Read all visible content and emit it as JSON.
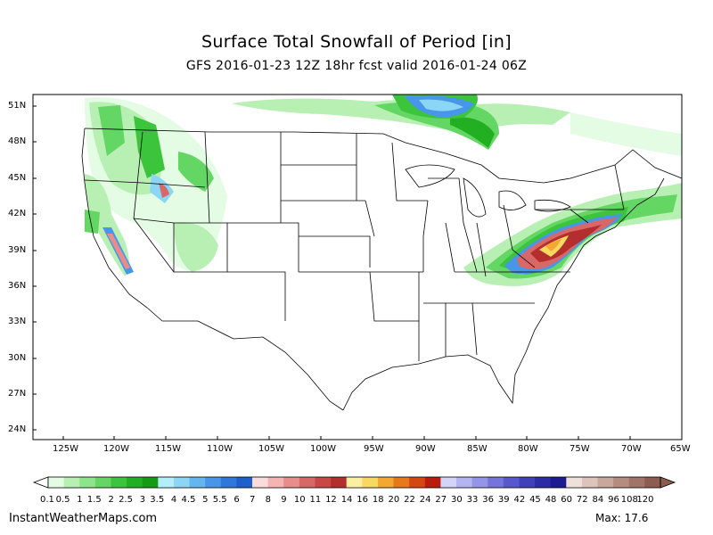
{
  "title": "Surface Total Snowfall of Period [in]",
  "subtitle": "GFS 2016-01-23 12Z 18hr fcst valid 2016-01-24 06Z",
  "lat_labels": [
    "51N",
    "48N",
    "45N",
    "42N",
    "39N",
    "36N",
    "33N",
    "30N",
    "27N",
    "24N"
  ],
  "lon_labels": [
    "125W",
    "120W",
    "115W",
    "110W",
    "105W",
    "100W",
    "95W",
    "90W",
    "85W",
    "80W",
    "75W",
    "70W",
    "65W"
  ],
  "legend": {
    "labels": [
      "0.1",
      "0.5",
      "1",
      "1.5",
      "2",
      "2.5",
      "3",
      "3.5",
      "4",
      "4.5",
      "5",
      "5.5",
      "6",
      "7",
      "8",
      "9",
      "10",
      "11",
      "12",
      "14",
      "16",
      "18",
      "20",
      "22",
      "24",
      "27",
      "30",
      "33",
      "36",
      "39",
      "42",
      "45",
      "48",
      "60",
      "72",
      "84",
      "96",
      "108",
      "120"
    ],
    "colors": [
      "#e4fce4",
      "#b8f0b4",
      "#8ce48c",
      "#64d664",
      "#3cc43c",
      "#22b022",
      "#139c13",
      "#b4eefa",
      "#8cd6f5",
      "#64b6f0",
      "#4896ea",
      "#2e78dc",
      "#1f5fcc",
      "#fadcdc",
      "#f4b4b4",
      "#e88c8c",
      "#d86868",
      "#c84848",
      "#b42e2e",
      "#faf0a0",
      "#f8d860",
      "#f4a832",
      "#e8781c",
      "#d44810",
      "#b81c0c",
      "#d4d4f8",
      "#b4b4f0",
      "#9494e8",
      "#7474dc",
      "#5858cc",
      "#4040b8",
      "#2c2ca4",
      "#1c1c90",
      "#f0e0dc",
      "#dcc4bc",
      "#c8a89c",
      "#b48c80",
      "#a07468",
      "#8c5c50"
    ]
  },
  "footer": {
    "site": "InstantWeatherMaps.com",
    "max": "Max:  17.6"
  }
}
